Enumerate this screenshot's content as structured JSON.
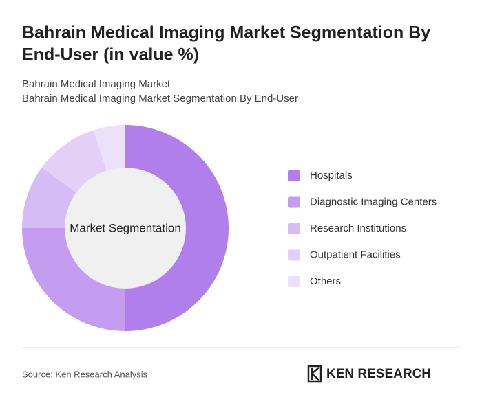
{
  "chart_data": {
    "type": "pie",
    "title": [
      "Bahrain Medical Imaging Market Segmentation By",
      "End-User (in value %)"
    ],
    "subtitle": [
      "Bahrain Medical Imaging Market",
      "Bahrain Medical Imaging Market Segmentation By End-User"
    ],
    "center_label": "Market Segmentation",
    "categories": [
      "Hospitals",
      "Diagnostic Imaging Centers",
      "Research Institutions",
      "Outpatient Facilities",
      "Others"
    ],
    "values": [
      50,
      25,
      10,
      10,
      5
    ],
    "colors": [
      "#b07fec",
      "#c49cf0",
      "#d6bcf5",
      "#e2d0f8",
      "#ece0fa"
    ],
    "legend": "right"
  },
  "footer": {
    "source": "Source: Ken Research Analysis",
    "logo": "KEN RESEARCH"
  }
}
